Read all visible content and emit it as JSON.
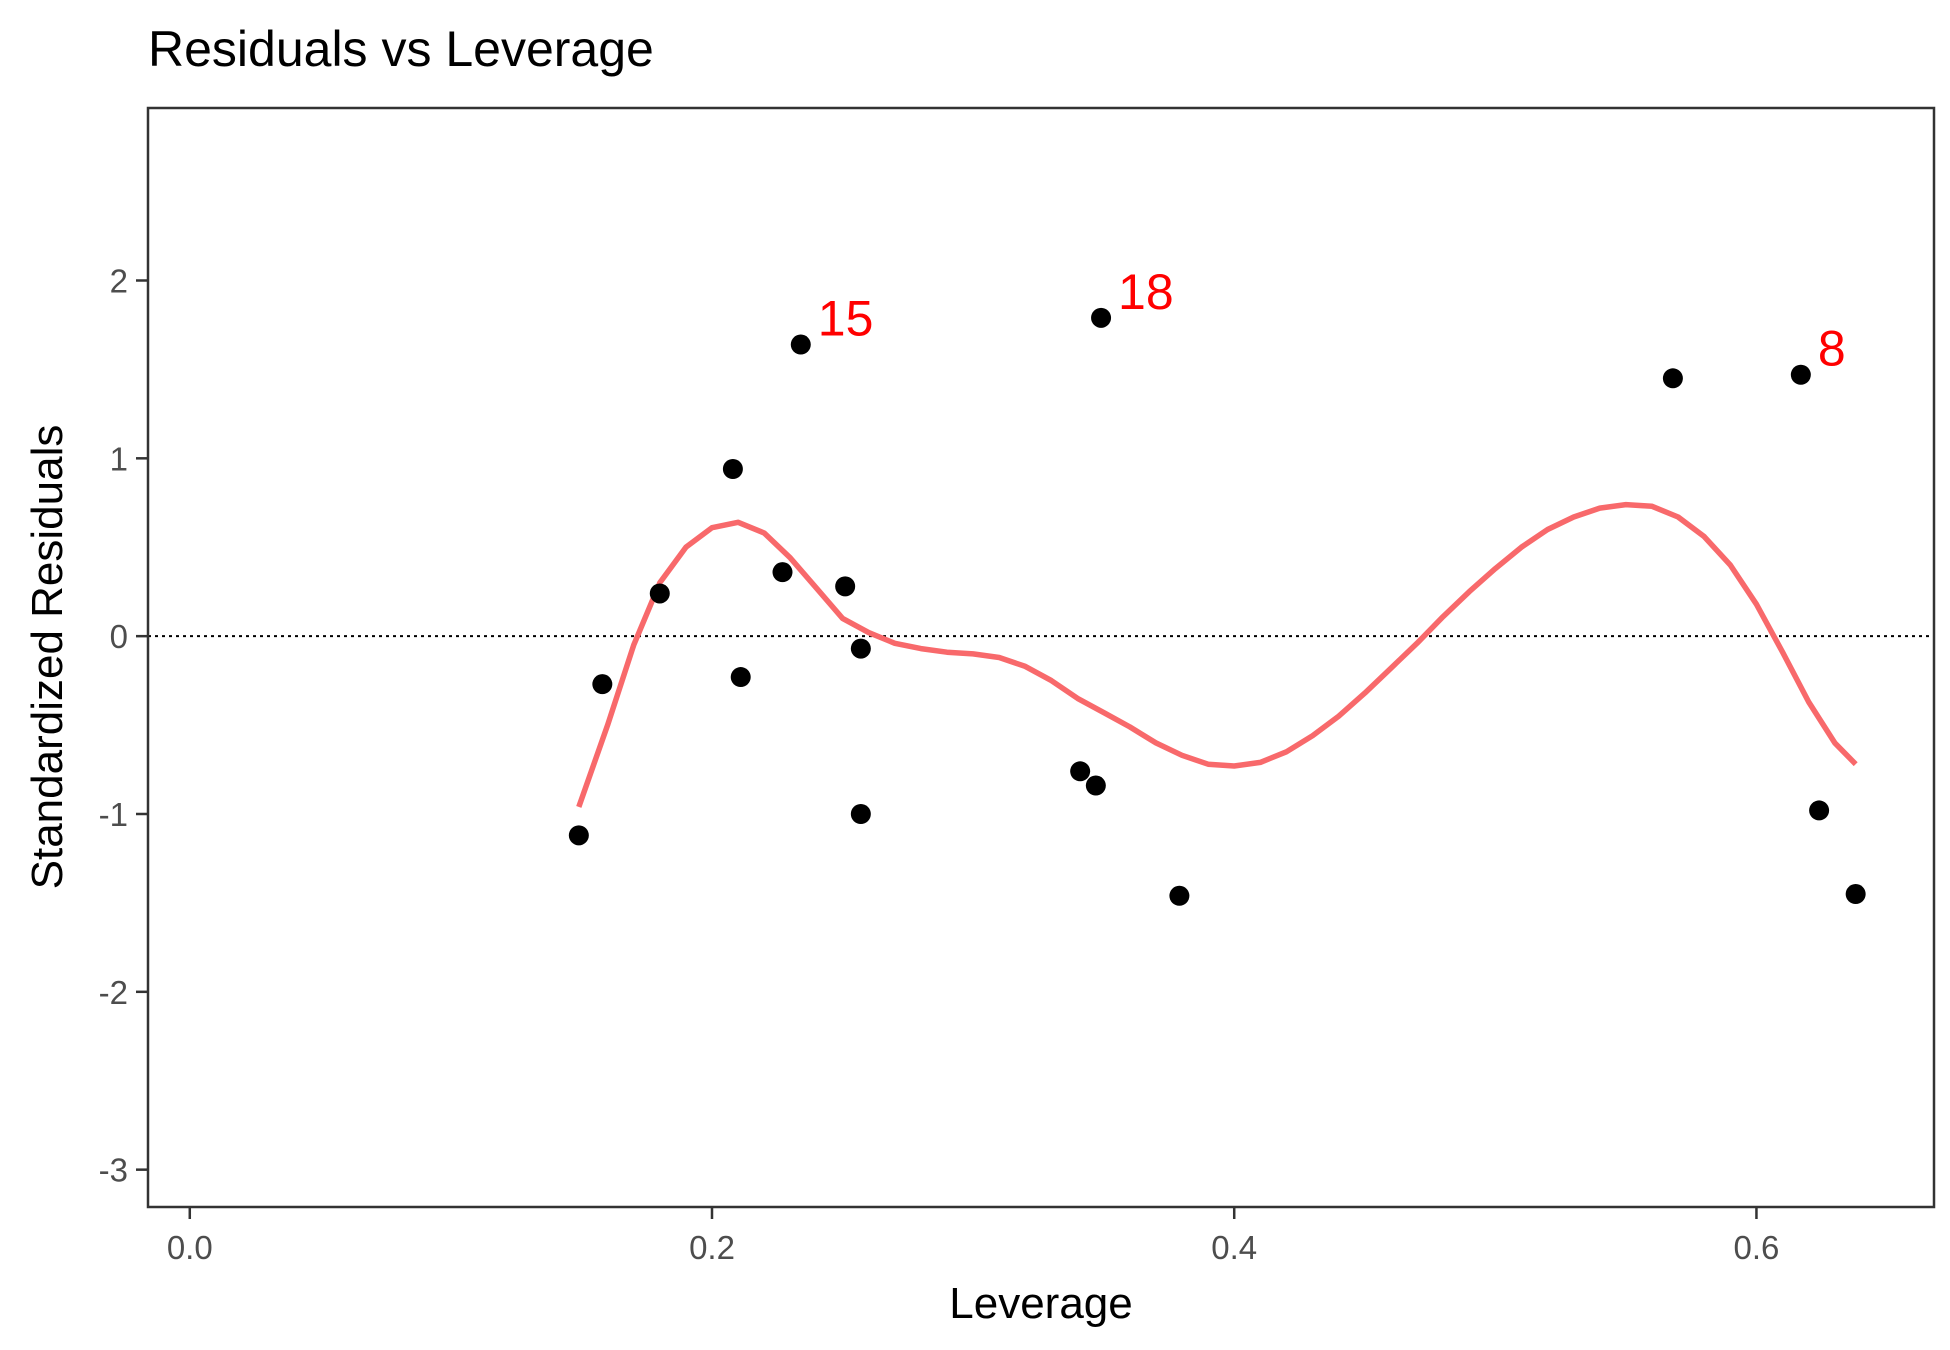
{
  "chart_data": {
    "type": "scatter",
    "title": "Residuals vs Leverage",
    "xlabel": "Leverage",
    "ylabel": "Standardized Residuals",
    "xlim": [
      -0.016,
      0.668
    ],
    "ylim": [
      -3.21,
      2.97
    ],
    "x_ticks": [
      0.0,
      0.2,
      0.4,
      0.6
    ],
    "x_tick_labels": [
      "0.0",
      "0.2",
      "0.4",
      "0.6"
    ],
    "y_ticks": [
      -3,
      -2,
      -1,
      0,
      1,
      2
    ],
    "y_tick_labels": [
      "-3",
      "-2",
      "-1",
      "0",
      "1",
      "2"
    ],
    "grid": false,
    "reference_line": {
      "y": 0,
      "style": "dotted",
      "color": "#000000"
    },
    "points": [
      {
        "x": 0.149,
        "y": -1.12
      },
      {
        "x": 0.158,
        "y": -0.27
      },
      {
        "x": 0.18,
        "y": 0.24
      },
      {
        "x": 0.208,
        "y": 0.94
      },
      {
        "x": 0.211,
        "y": -0.23
      },
      {
        "x": 0.227,
        "y": 0.36
      },
      {
        "x": 0.234,
        "y": 1.64,
        "label": "15"
      },
      {
        "x": 0.251,
        "y": 0.28
      },
      {
        "x": 0.257,
        "y": -0.07
      },
      {
        "x": 0.257,
        "y": -1.0
      },
      {
        "x": 0.341,
        "y": -0.76
      },
      {
        "x": 0.347,
        "y": -0.84
      },
      {
        "x": 0.349,
        "y": 1.79,
        "label": "18"
      },
      {
        "x": 0.379,
        "y": -1.46
      },
      {
        "x": 0.568,
        "y": 1.45
      },
      {
        "x": 0.617,
        "y": 1.47,
        "label": "8"
      },
      {
        "x": 0.624,
        "y": -0.98
      },
      {
        "x": 0.638,
        "y": -1.45
      }
    ],
    "point_color": "#000000",
    "label_color": "#ff0000",
    "smooth_line": {
      "color": "#f8696b",
      "x": [
        0.149,
        0.16,
        0.17,
        0.18,
        0.19,
        0.2,
        0.21,
        0.22,
        0.23,
        0.24,
        0.25,
        0.26,
        0.27,
        0.28,
        0.29,
        0.3,
        0.31,
        0.32,
        0.33,
        0.34,
        0.35,
        0.36,
        0.37,
        0.38,
        0.39,
        0.4,
        0.41,
        0.42,
        0.43,
        0.44,
        0.45,
        0.46,
        0.47,
        0.48,
        0.49,
        0.5,
        0.51,
        0.52,
        0.53,
        0.54,
        0.55,
        0.56,
        0.57,
        0.58,
        0.59,
        0.6,
        0.61,
        0.62,
        0.63,
        0.638
      ],
      "y": [
        -0.96,
        -0.5,
        -0.05,
        0.3,
        0.5,
        0.61,
        0.64,
        0.58,
        0.44,
        0.27,
        0.1,
        0.02,
        -0.04,
        -0.07,
        -0.09,
        -0.1,
        -0.12,
        -0.17,
        -0.25,
        -0.35,
        -0.43,
        -0.51,
        -0.6,
        -0.67,
        -0.72,
        -0.73,
        -0.71,
        -0.65,
        -0.56,
        -0.45,
        -0.32,
        -0.18,
        -0.04,
        0.11,
        0.25,
        0.38,
        0.5,
        0.6,
        0.67,
        0.72,
        0.74,
        0.73,
        0.67,
        0.56,
        0.4,
        0.18,
        -0.09,
        -0.37,
        -0.6,
        -0.72
      ]
    }
  }
}
